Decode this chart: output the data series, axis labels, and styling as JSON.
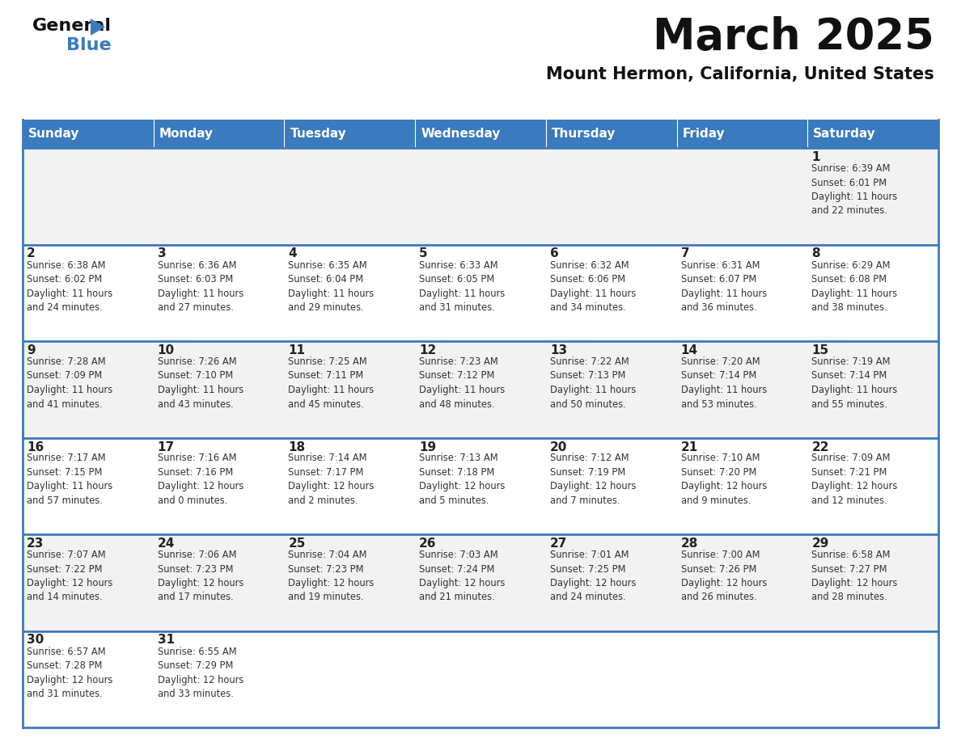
{
  "title": "March 2025",
  "subtitle": "Mount Hermon, California, United States",
  "days_of_week": [
    "Sunday",
    "Monday",
    "Tuesday",
    "Wednesday",
    "Thursday",
    "Friday",
    "Saturday"
  ],
  "header_bg": "#3a7abf",
  "header_text": "#ffffff",
  "row_bg": [
    "#f2f2f2",
    "#ffffff"
  ],
  "border_color": "#3a7abf",
  "day_number_color": "#222222",
  "text_color": "#333333",
  "title_color": "#111111",
  "calendar_data": [
    [
      null,
      null,
      null,
      null,
      null,
      null,
      {
        "day": 1,
        "sunrise": "6:39 AM",
        "sunset": "6:01 PM",
        "daylight": "11 hours\nand 22 minutes."
      }
    ],
    [
      {
        "day": 2,
        "sunrise": "6:38 AM",
        "sunset": "6:02 PM",
        "daylight": "11 hours\nand 24 minutes."
      },
      {
        "day": 3,
        "sunrise": "6:36 AM",
        "sunset": "6:03 PM",
        "daylight": "11 hours\nand 27 minutes."
      },
      {
        "day": 4,
        "sunrise": "6:35 AM",
        "sunset": "6:04 PM",
        "daylight": "11 hours\nand 29 minutes."
      },
      {
        "day": 5,
        "sunrise": "6:33 AM",
        "sunset": "6:05 PM",
        "daylight": "11 hours\nand 31 minutes."
      },
      {
        "day": 6,
        "sunrise": "6:32 AM",
        "sunset": "6:06 PM",
        "daylight": "11 hours\nand 34 minutes."
      },
      {
        "day": 7,
        "sunrise": "6:31 AM",
        "sunset": "6:07 PM",
        "daylight": "11 hours\nand 36 minutes."
      },
      {
        "day": 8,
        "sunrise": "6:29 AM",
        "sunset": "6:08 PM",
        "daylight": "11 hours\nand 38 minutes."
      }
    ],
    [
      {
        "day": 9,
        "sunrise": "7:28 AM",
        "sunset": "7:09 PM",
        "daylight": "11 hours\nand 41 minutes."
      },
      {
        "day": 10,
        "sunrise": "7:26 AM",
        "sunset": "7:10 PM",
        "daylight": "11 hours\nand 43 minutes."
      },
      {
        "day": 11,
        "sunrise": "7:25 AM",
        "sunset": "7:11 PM",
        "daylight": "11 hours\nand 45 minutes."
      },
      {
        "day": 12,
        "sunrise": "7:23 AM",
        "sunset": "7:12 PM",
        "daylight": "11 hours\nand 48 minutes."
      },
      {
        "day": 13,
        "sunrise": "7:22 AM",
        "sunset": "7:13 PM",
        "daylight": "11 hours\nand 50 minutes."
      },
      {
        "day": 14,
        "sunrise": "7:20 AM",
        "sunset": "7:14 PM",
        "daylight": "11 hours\nand 53 minutes."
      },
      {
        "day": 15,
        "sunrise": "7:19 AM",
        "sunset": "7:14 PM",
        "daylight": "11 hours\nand 55 minutes."
      }
    ],
    [
      {
        "day": 16,
        "sunrise": "7:17 AM",
        "sunset": "7:15 PM",
        "daylight": "11 hours\nand 57 minutes."
      },
      {
        "day": 17,
        "sunrise": "7:16 AM",
        "sunset": "7:16 PM",
        "daylight": "12 hours\nand 0 minutes."
      },
      {
        "day": 18,
        "sunrise": "7:14 AM",
        "sunset": "7:17 PM",
        "daylight": "12 hours\nand 2 minutes."
      },
      {
        "day": 19,
        "sunrise": "7:13 AM",
        "sunset": "7:18 PM",
        "daylight": "12 hours\nand 5 minutes."
      },
      {
        "day": 20,
        "sunrise": "7:12 AM",
        "sunset": "7:19 PM",
        "daylight": "12 hours\nand 7 minutes."
      },
      {
        "day": 21,
        "sunrise": "7:10 AM",
        "sunset": "7:20 PM",
        "daylight": "12 hours\nand 9 minutes."
      },
      {
        "day": 22,
        "sunrise": "7:09 AM",
        "sunset": "7:21 PM",
        "daylight": "12 hours\nand 12 minutes."
      }
    ],
    [
      {
        "day": 23,
        "sunrise": "7:07 AM",
        "sunset": "7:22 PM",
        "daylight": "12 hours\nand 14 minutes."
      },
      {
        "day": 24,
        "sunrise": "7:06 AM",
        "sunset": "7:23 PM",
        "daylight": "12 hours\nand 17 minutes."
      },
      {
        "day": 25,
        "sunrise": "7:04 AM",
        "sunset": "7:23 PM",
        "daylight": "12 hours\nand 19 minutes."
      },
      {
        "day": 26,
        "sunrise": "7:03 AM",
        "sunset": "7:24 PM",
        "daylight": "12 hours\nand 21 minutes."
      },
      {
        "day": 27,
        "sunrise": "7:01 AM",
        "sunset": "7:25 PM",
        "daylight": "12 hours\nand 24 minutes."
      },
      {
        "day": 28,
        "sunrise": "7:00 AM",
        "sunset": "7:26 PM",
        "daylight": "12 hours\nand 26 minutes."
      },
      {
        "day": 29,
        "sunrise": "6:58 AM",
        "sunset": "7:27 PM",
        "daylight": "12 hours\nand 28 minutes."
      }
    ],
    [
      {
        "day": 30,
        "sunrise": "6:57 AM",
        "sunset": "7:28 PM",
        "daylight": "12 hours\nand 31 minutes."
      },
      {
        "day": 31,
        "sunrise": "6:55 AM",
        "sunset": "7:29 PM",
        "daylight": "12 hours\nand 33 minutes."
      },
      null,
      null,
      null,
      null,
      null
    ]
  ]
}
